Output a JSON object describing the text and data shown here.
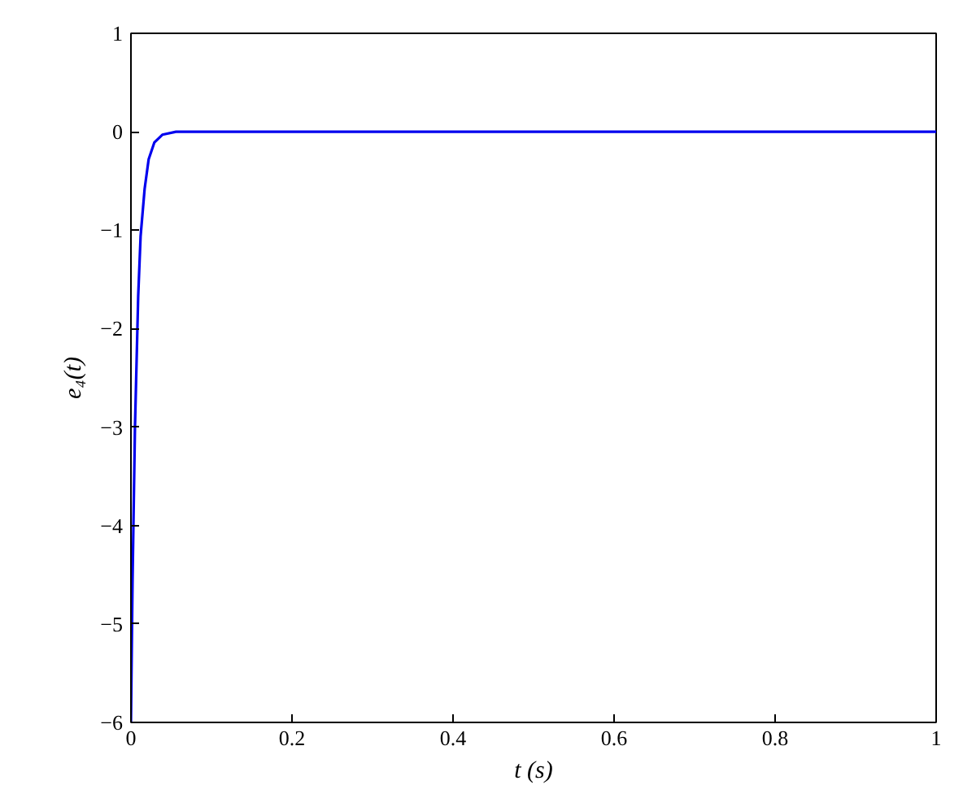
{
  "chart_data": {
    "type": "line",
    "xlabel": "t (s)",
    "ylabel": "e₄(t)",
    "x": [
      0,
      0.002,
      0.005,
      0.009,
      0.012,
      0.017,
      0.022,
      0.029,
      0.039,
      0.056,
      0.1,
      0.3,
      0.5,
      0.7,
      1
    ],
    "series": [
      {
        "color": "#0000ee",
        "values": [
          -6,
          -4.55,
          -3.0,
          -1.67,
          -1.06,
          -0.58,
          -0.28,
          -0.11,
          -0.03,
          0,
          0,
          0,
          0,
          0,
          0
        ]
      }
    ],
    "xlim": [
      0,
      1
    ],
    "ylim": [
      -6,
      1
    ],
    "xticks": [
      0,
      0.2,
      0.4,
      0.6,
      0.8,
      1
    ],
    "yticks": [
      -6,
      -5,
      -4,
      -3,
      -2,
      -1,
      0,
      1
    ],
    "marker": "none",
    "line_style": "solid"
  }
}
